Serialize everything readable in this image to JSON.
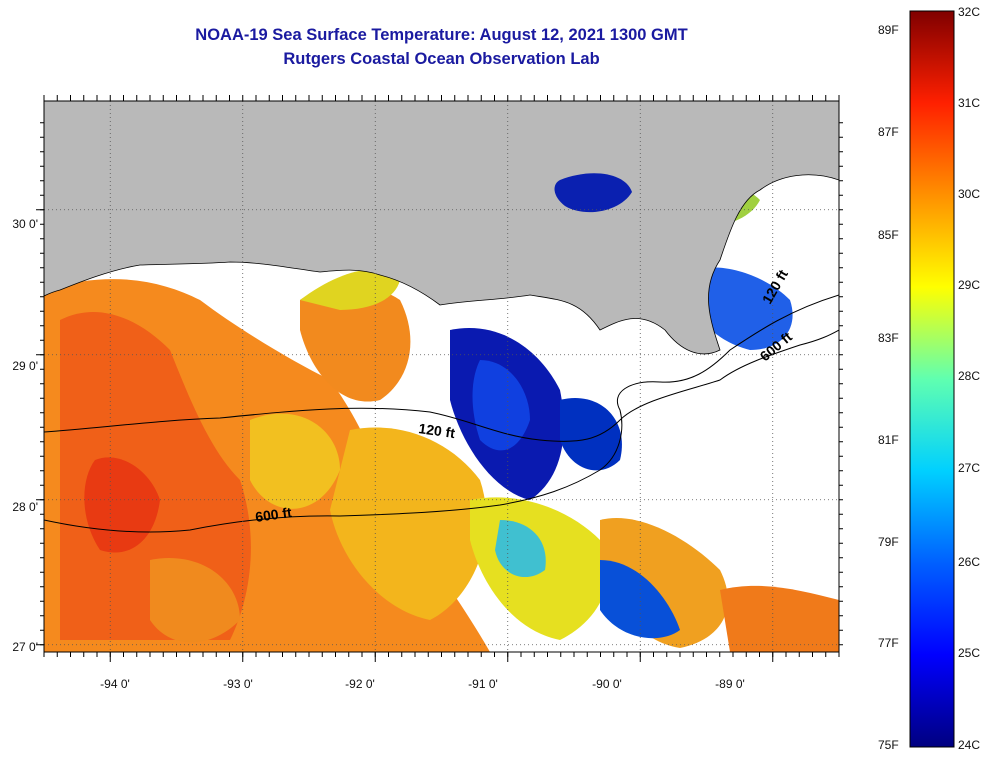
{
  "header": {
    "title": "NOAA-19 Sea Surface Temperature:  August 12, 2021 1300 GMT",
    "subtitle": "Rutgers Coastal Ocean Observation Lab"
  },
  "map": {
    "lon_range": [
      -94.5,
      -88.5
    ],
    "lat_range": [
      26.95,
      30.75
    ],
    "lat_labels": [
      "27 0'",
      "28 0'",
      "29 0'",
      "30 0'"
    ],
    "lon_labels": [
      "-94 0'",
      "-93 0'",
      "-92 0'",
      "-91 0'",
      "-90 0'",
      "-89 0'"
    ],
    "contours": [
      {
        "label": "120 ft"
      },
      {
        "label": "600 ft"
      },
      {
        "label": "120 ft"
      },
      {
        "label": "600 ft"
      }
    ],
    "colors": {
      "land": "#b9b9b9",
      "no_data": "#ffffff",
      "grid": "#555555"
    }
  },
  "colorbar": {
    "celsius_labels": [
      "32C",
      "31C",
      "30C",
      "29C",
      "28C",
      "27C",
      "26C",
      "25C",
      "24C"
    ],
    "fahrenheit_labels": [
      "89F",
      "87F",
      "85F",
      "83F",
      "81F",
      "79F",
      "77F",
      "75F"
    ],
    "range_celsius": [
      24,
      32
    ],
    "colors": [
      "#000080",
      "#0000ff",
      "#0080ff",
      "#00ffff",
      "#80ff80",
      "#ffff00",
      "#ff8000",
      "#ff0000",
      "#800000"
    ]
  }
}
